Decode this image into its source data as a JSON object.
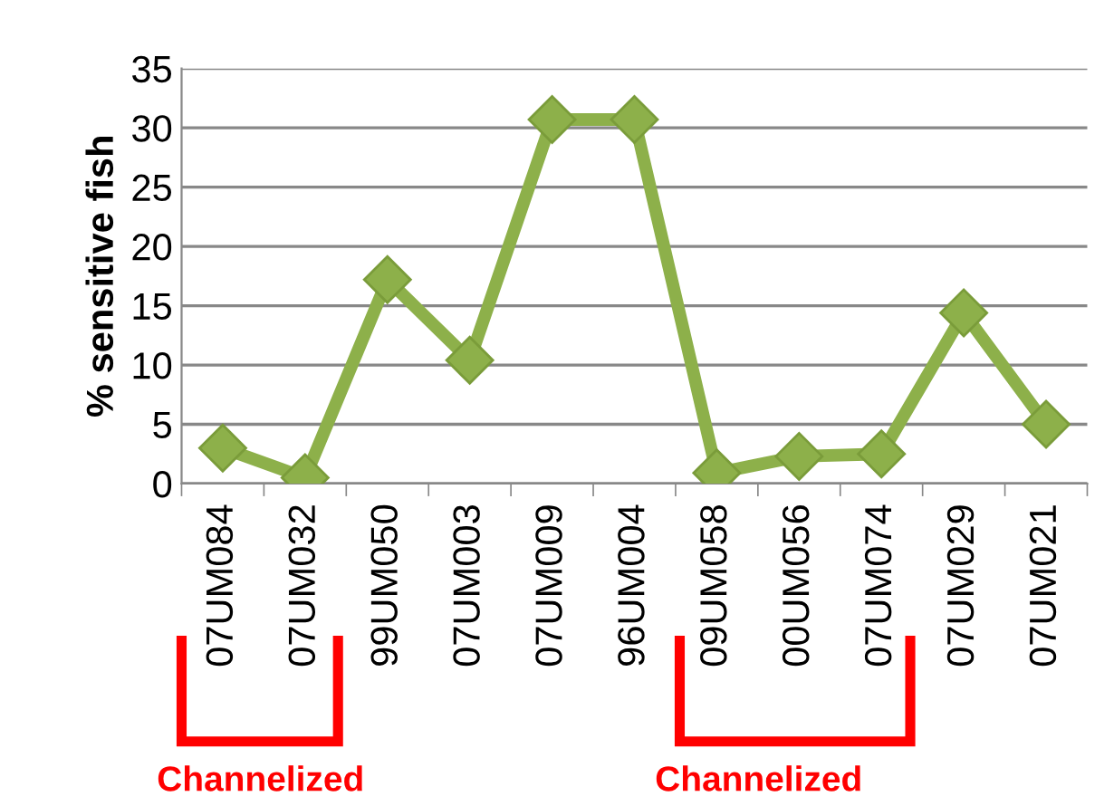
{
  "chart_data": {
    "type": "line",
    "ylabel": "% sensitive fish",
    "categories": [
      "07UM084",
      "07UM032",
      "99UM050",
      "07UM003",
      "07UM009",
      "96UM004",
      "09UM058",
      "00UM056",
      "07UM074",
      "07UM029",
      "07UM021"
    ],
    "series": [
      {
        "color": "#8db04a",
        "values": [
          3.0,
          0.5,
          17.2,
          10.4,
          30.7,
          30.7,
          0.9,
          2.3,
          2.5,
          14.4,
          5.0
        ]
      }
    ],
    "ylim": [
      0,
      35
    ],
    "yticks": [
      0,
      5,
      10,
      15,
      20,
      25,
      30,
      35
    ],
    "grid": "y",
    "marker": "diamond",
    "line_style": "solid",
    "annotations": [
      "Channelized",
      "Channelized"
    ]
  }
}
